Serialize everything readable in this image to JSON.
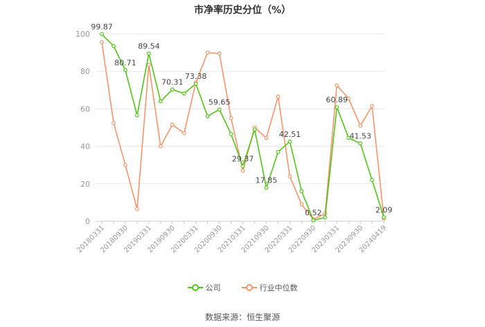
{
  "colors": {
    "company": "#52c41a",
    "industry": "#f5946b",
    "grid": "#e8e8e8",
    "axis": "#cccccc",
    "tick": "#999999"
  },
  "chart_data": {
    "type": "line",
    "title": "市净率历史分位（%）",
    "ylim": [
      0,
      100
    ],
    "yticks": [
      0,
      20,
      40,
      60,
      80,
      100
    ],
    "x_tick_labels": [
      "20180331",
      "20180930",
      "20190331",
      "20190930",
      "20200331",
      "20200930",
      "20210331",
      "20210930",
      "20220331",
      "20220930",
      "20230331",
      "20230930",
      "20240419"
    ],
    "grid": true,
    "legend_position": "bottom",
    "series": [
      {
        "name": "公司",
        "values": [
          99.87,
          93.5,
          80.71,
          56.5,
          89.54,
          64.0,
          70.31,
          68.2,
          73.38,
          56.0,
          59.65,
          46.5,
          29.37,
          49.0,
          17.85,
          37.0,
          42.51,
          16.0,
          0.52,
          2.0,
          60.89,
          44.5,
          41.53,
          22.0,
          2.09
        ],
        "labels": [
          "99.87",
          "",
          "80.71",
          "",
          "89.54",
          "",
          "70.31",
          "",
          "73.38",
          "",
          "59.65",
          "",
          "29.37",
          "",
          "17.85",
          "",
          "42.51",
          "",
          "0.52",
          "",
          "60.89",
          "",
          "41.53",
          "",
          "2.09"
        ]
      },
      {
        "name": "行业中位数",
        "values": [
          95.5,
          52.5,
          30.0,
          6.5,
          83.5,
          40.0,
          51.5,
          47.0,
          74.0,
          90.0,
          89.5,
          55.0,
          27.0,
          50.0,
          44.5,
          66.5,
          24.0,
          9.0,
          1.0,
          4.0,
          72.5,
          65.5,
          51.0,
          61.5,
          1.5
        ]
      }
    ],
    "source": "数据来源：恒生聚源"
  }
}
